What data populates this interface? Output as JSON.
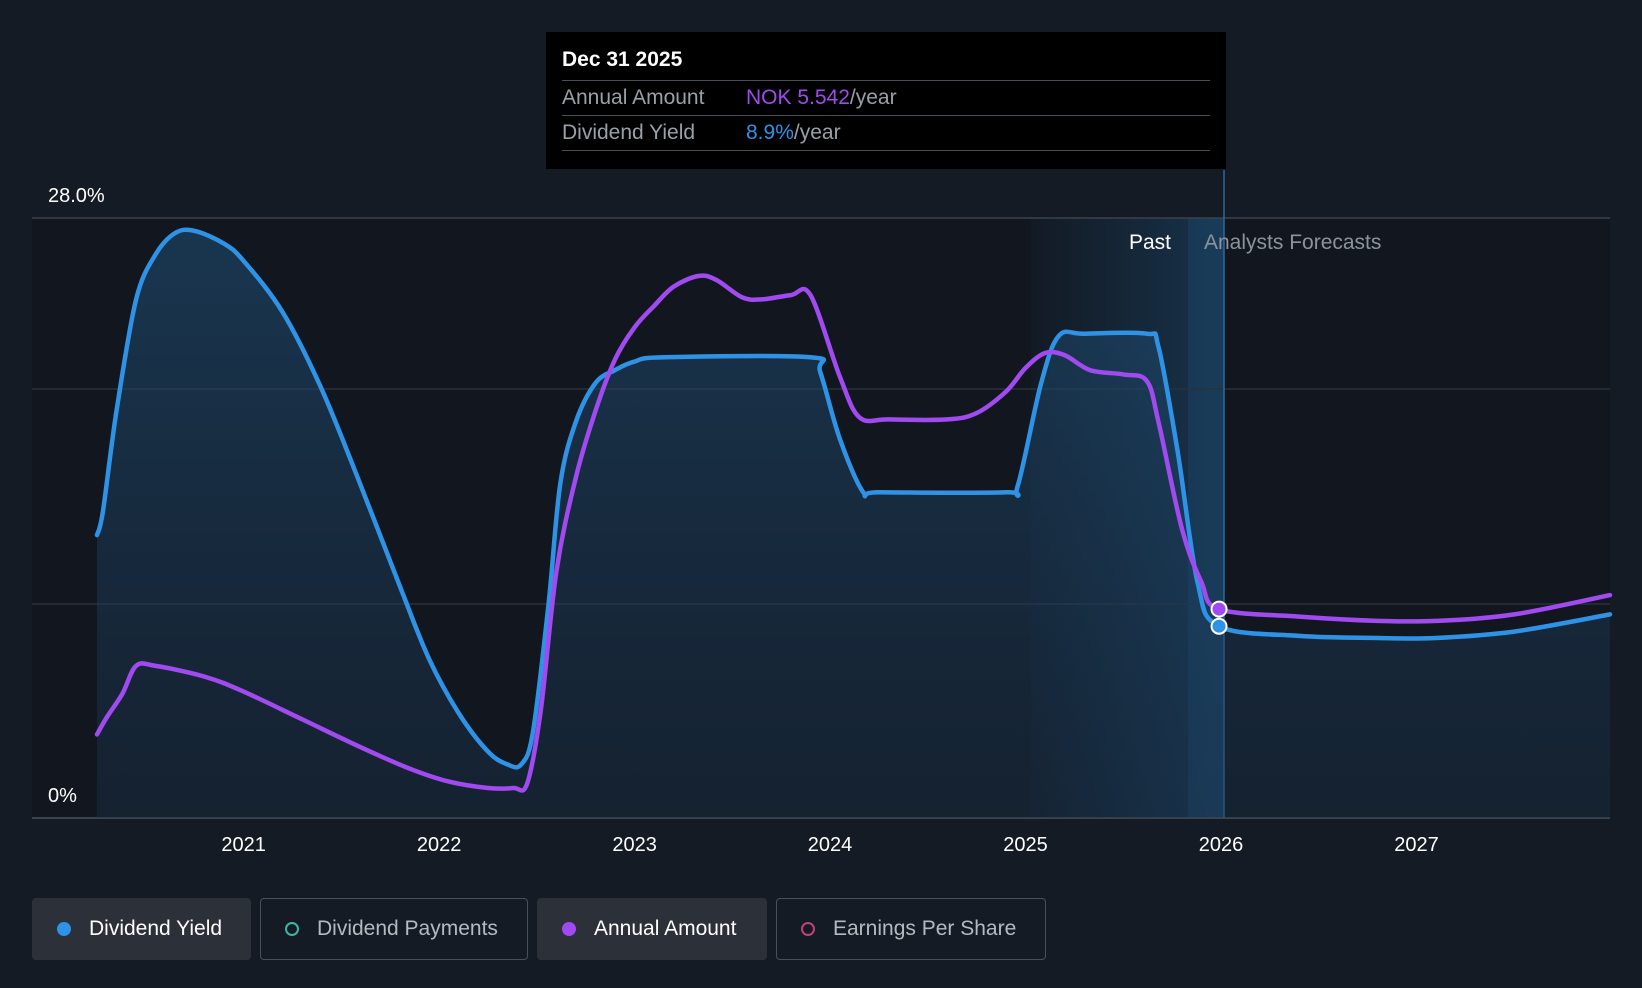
{
  "chart_data": {
    "type": "line",
    "y_axis": {
      "top_label": "28.0%",
      "bottom_label": "0%",
      "ylim": [
        0,
        28
      ]
    },
    "x_ticks": [
      "2021",
      "2022",
      "2023",
      "2024",
      "2025",
      "2026",
      "2027"
    ],
    "x_range": [
      2020.25,
      2027.99
    ],
    "regions": {
      "past_label": "Past",
      "forecast_label": "Analysts Forecasts",
      "divider_x": 2025.99
    },
    "series": [
      {
        "name": "Dividend Yield",
        "color": "#2e93e6",
        "points": [
          [
            2020.25,
            13.2
          ],
          [
            2020.28,
            14.3
          ],
          [
            2020.35,
            19
          ],
          [
            2020.45,
            24.2
          ],
          [
            2020.55,
            26.3
          ],
          [
            2020.65,
            27.3
          ],
          [
            2020.75,
            27.4
          ],
          [
            2020.9,
            26.8
          ],
          [
            2021.0,
            26.0
          ],
          [
            2021.2,
            23.6
          ],
          [
            2021.4,
            20.0
          ],
          [
            2021.6,
            15.5
          ],
          [
            2021.8,
            10.8
          ],
          [
            2021.95,
            7.4
          ],
          [
            2022.1,
            4.9
          ],
          [
            2022.25,
            3.1
          ],
          [
            2022.35,
            2.5
          ],
          [
            2022.42,
            2.5
          ],
          [
            2022.48,
            4.0
          ],
          [
            2022.56,
            10
          ],
          [
            2022.62,
            15.6
          ],
          [
            2022.7,
            18.5
          ],
          [
            2022.8,
            20.3
          ],
          [
            2022.9,
            20.9
          ],
          [
            2023.0,
            21.3
          ],
          [
            2023.15,
            21.5
          ],
          [
            2023.9,
            21.5
          ],
          [
            2023.95,
            20.8
          ],
          [
            2024.05,
            17.7
          ],
          [
            2024.17,
            15.2
          ],
          [
            2024.25,
            15.2
          ],
          [
            2024.9,
            15.2
          ],
          [
            2024.96,
            15.5
          ],
          [
            2025.08,
            20.3
          ],
          [
            2025.17,
            22.5
          ],
          [
            2025.3,
            22.6
          ],
          [
            2025.62,
            22.6
          ],
          [
            2025.68,
            22.0
          ],
          [
            2025.78,
            17.0
          ],
          [
            2025.88,
            11.0
          ],
          [
            2025.99,
            8.95
          ],
          [
            2026.4,
            8.5
          ],
          [
            2026.8,
            8.4
          ],
          [
            2027.1,
            8.4
          ],
          [
            2027.5,
            8.7
          ],
          [
            2027.99,
            9.5
          ]
        ]
      },
      {
        "name": "Annual Amount",
        "color": "#a04af0",
        "points": [
          [
            2020.25,
            3.9
          ],
          [
            2020.3,
            4.7
          ],
          [
            2020.38,
            5.8
          ],
          [
            2020.45,
            7.1
          ],
          [
            2020.55,
            7.1
          ],
          [
            2020.8,
            6.6
          ],
          [
            2021.0,
            5.9
          ],
          [
            2021.3,
            4.6
          ],
          [
            2021.6,
            3.3
          ],
          [
            2021.85,
            2.3
          ],
          [
            2022.05,
            1.7
          ],
          [
            2022.25,
            1.4
          ],
          [
            2022.38,
            1.4
          ],
          [
            2022.45,
            1.6
          ],
          [
            2022.52,
            5.0
          ],
          [
            2022.6,
            11.5
          ],
          [
            2022.7,
            15.9
          ],
          [
            2022.8,
            19.0
          ],
          [
            2022.9,
            21.4
          ],
          [
            2023.0,
            22.9
          ],
          [
            2023.1,
            23.9
          ],
          [
            2023.2,
            24.8
          ],
          [
            2023.33,
            25.3
          ],
          [
            2023.42,
            25.1
          ],
          [
            2023.55,
            24.3
          ],
          [
            2023.65,
            24.2
          ],
          [
            2023.8,
            24.4
          ],
          [
            2023.9,
            24.4
          ],
          [
            2024.05,
            20.6
          ],
          [
            2024.15,
            18.7
          ],
          [
            2024.3,
            18.6
          ],
          [
            2024.6,
            18.6
          ],
          [
            2024.75,
            18.9
          ],
          [
            2024.9,
            19.9
          ],
          [
            2025.0,
            21.0
          ],
          [
            2025.1,
            21.7
          ],
          [
            2025.2,
            21.6
          ],
          [
            2025.33,
            20.9
          ],
          [
            2025.5,
            20.7
          ],
          [
            2025.62,
            20.4
          ],
          [
            2025.68,
            18.5
          ],
          [
            2025.8,
            13.5
          ],
          [
            2025.9,
            11.0
          ],
          [
            2025.99,
            9.75
          ],
          [
            2026.4,
            9.4
          ],
          [
            2026.8,
            9.2
          ],
          [
            2027.1,
            9.2
          ],
          [
            2027.5,
            9.5
          ],
          [
            2027.99,
            10.4
          ]
        ]
      }
    ],
    "tooltip": {
      "date": "Dec 31 2025",
      "annual_amount_label": "Annual Amount",
      "annual_amount_value": "NOK 5.542",
      "dividend_yield_label": "Dividend Yield",
      "dividend_yield_value": "8.9%",
      "unit": "/year"
    }
  },
  "legend": [
    {
      "label": "Dividend Yield",
      "color": "#2e93e6",
      "state": "active"
    },
    {
      "label": "Dividend Payments",
      "color": "#3cb6a6",
      "state": "inactive"
    },
    {
      "label": "Annual Amount",
      "color": "#a04af0",
      "state": "active"
    },
    {
      "label": "Earnings Per Share",
      "color": "#c2407a",
      "state": "inactive"
    }
  ]
}
